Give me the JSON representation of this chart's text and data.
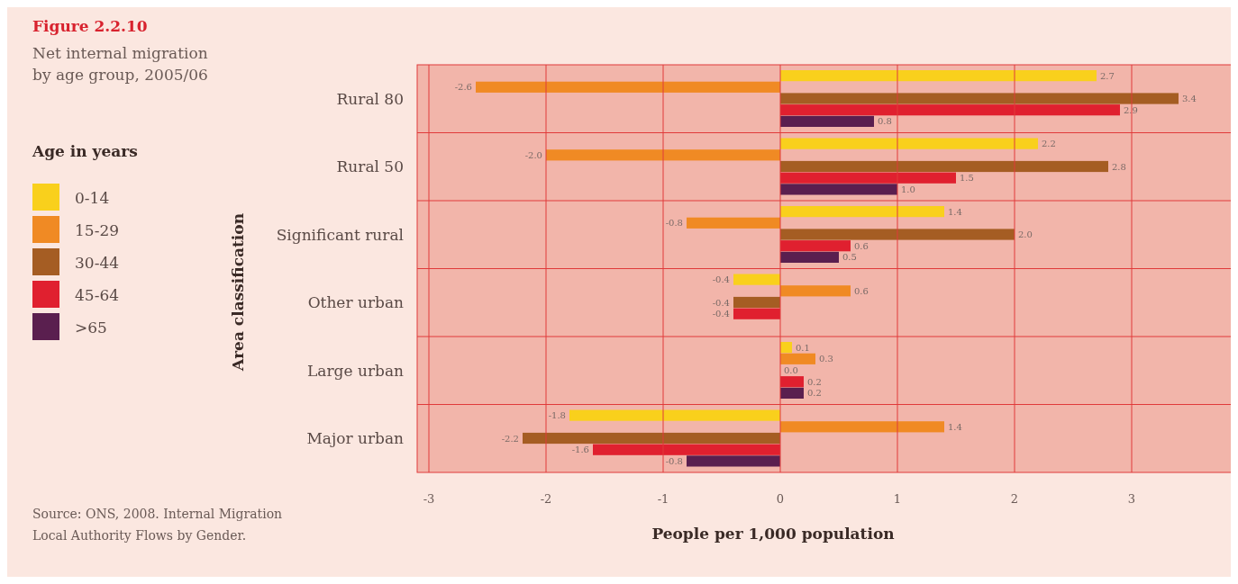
{
  "chart_data": {
    "type": "bar",
    "orientation": "horizontal",
    "title": "Figure 2.2.10",
    "subtitle": "Net internal migration by age group, 2005/06",
    "xlabel": "People per 1,000 population",
    "ylabel": "Area classification",
    "legend_title": "Age in years",
    "legend": "left",
    "grid": "x",
    "categories": [
      "Rural 80",
      "Rural 50",
      "Significant rural",
      "Other urban",
      "Large urban",
      "Major urban"
    ],
    "xlim": [
      -3.1,
      3.9
    ],
    "xticks": [
      -3,
      -2,
      -1,
      0,
      1,
      2,
      3
    ],
    "series": [
      {
        "name": "0-14",
        "color": "#f9d01c",
        "values": [
          2.7,
          2.2,
          1.4,
          -0.4,
          0.1,
          -1.8
        ],
        "value_labels": [
          "2.7",
          "2.2",
          "1.4",
          "-0.4",
          "0.1",
          "-1.8"
        ]
      },
      {
        "name": "15-29",
        "color": "#f08a24",
        "values": [
          -2.6,
          -2.0,
          -0.8,
          0.6,
          0.3,
          1.4
        ],
        "value_labels": [
          "-2.6",
          "-2.0",
          "-0.8",
          "0.6",
          "0.3",
          "1.4"
        ]
      },
      {
        "name": "30-44",
        "color": "#a55d23",
        "values": [
          3.4,
          2.8,
          2.0,
          -0.4,
          0.0,
          -2.2
        ],
        "value_labels": [
          "3.4",
          "2.8",
          "2.0",
          "-0.4",
          "0.0",
          "-2.2"
        ]
      },
      {
        "name": "45-64",
        "color": "#e0202f",
        "values": [
          2.9,
          1.5,
          0.6,
          -0.4,
          0.2,
          -1.6
        ],
        "value_labels": [
          "2.9",
          "1.5",
          "0.6",
          "-0.4",
          "0.2",
          "-1.6"
        ]
      },
      {
        "name": ">65",
        "color": "#5a1f4f",
        "values": [
          0.8,
          1.0,
          0.5,
          null,
          0.2,
          -0.8
        ],
        "value_labels": [
          "0.8",
          "1.0",
          "0.5",
          null,
          "0.2",
          "-0.8"
        ]
      }
    ],
    "annotations": [
      "Source: ONS, 2008. Internal Migration Local Authority Flows by Gender."
    ]
  }
}
